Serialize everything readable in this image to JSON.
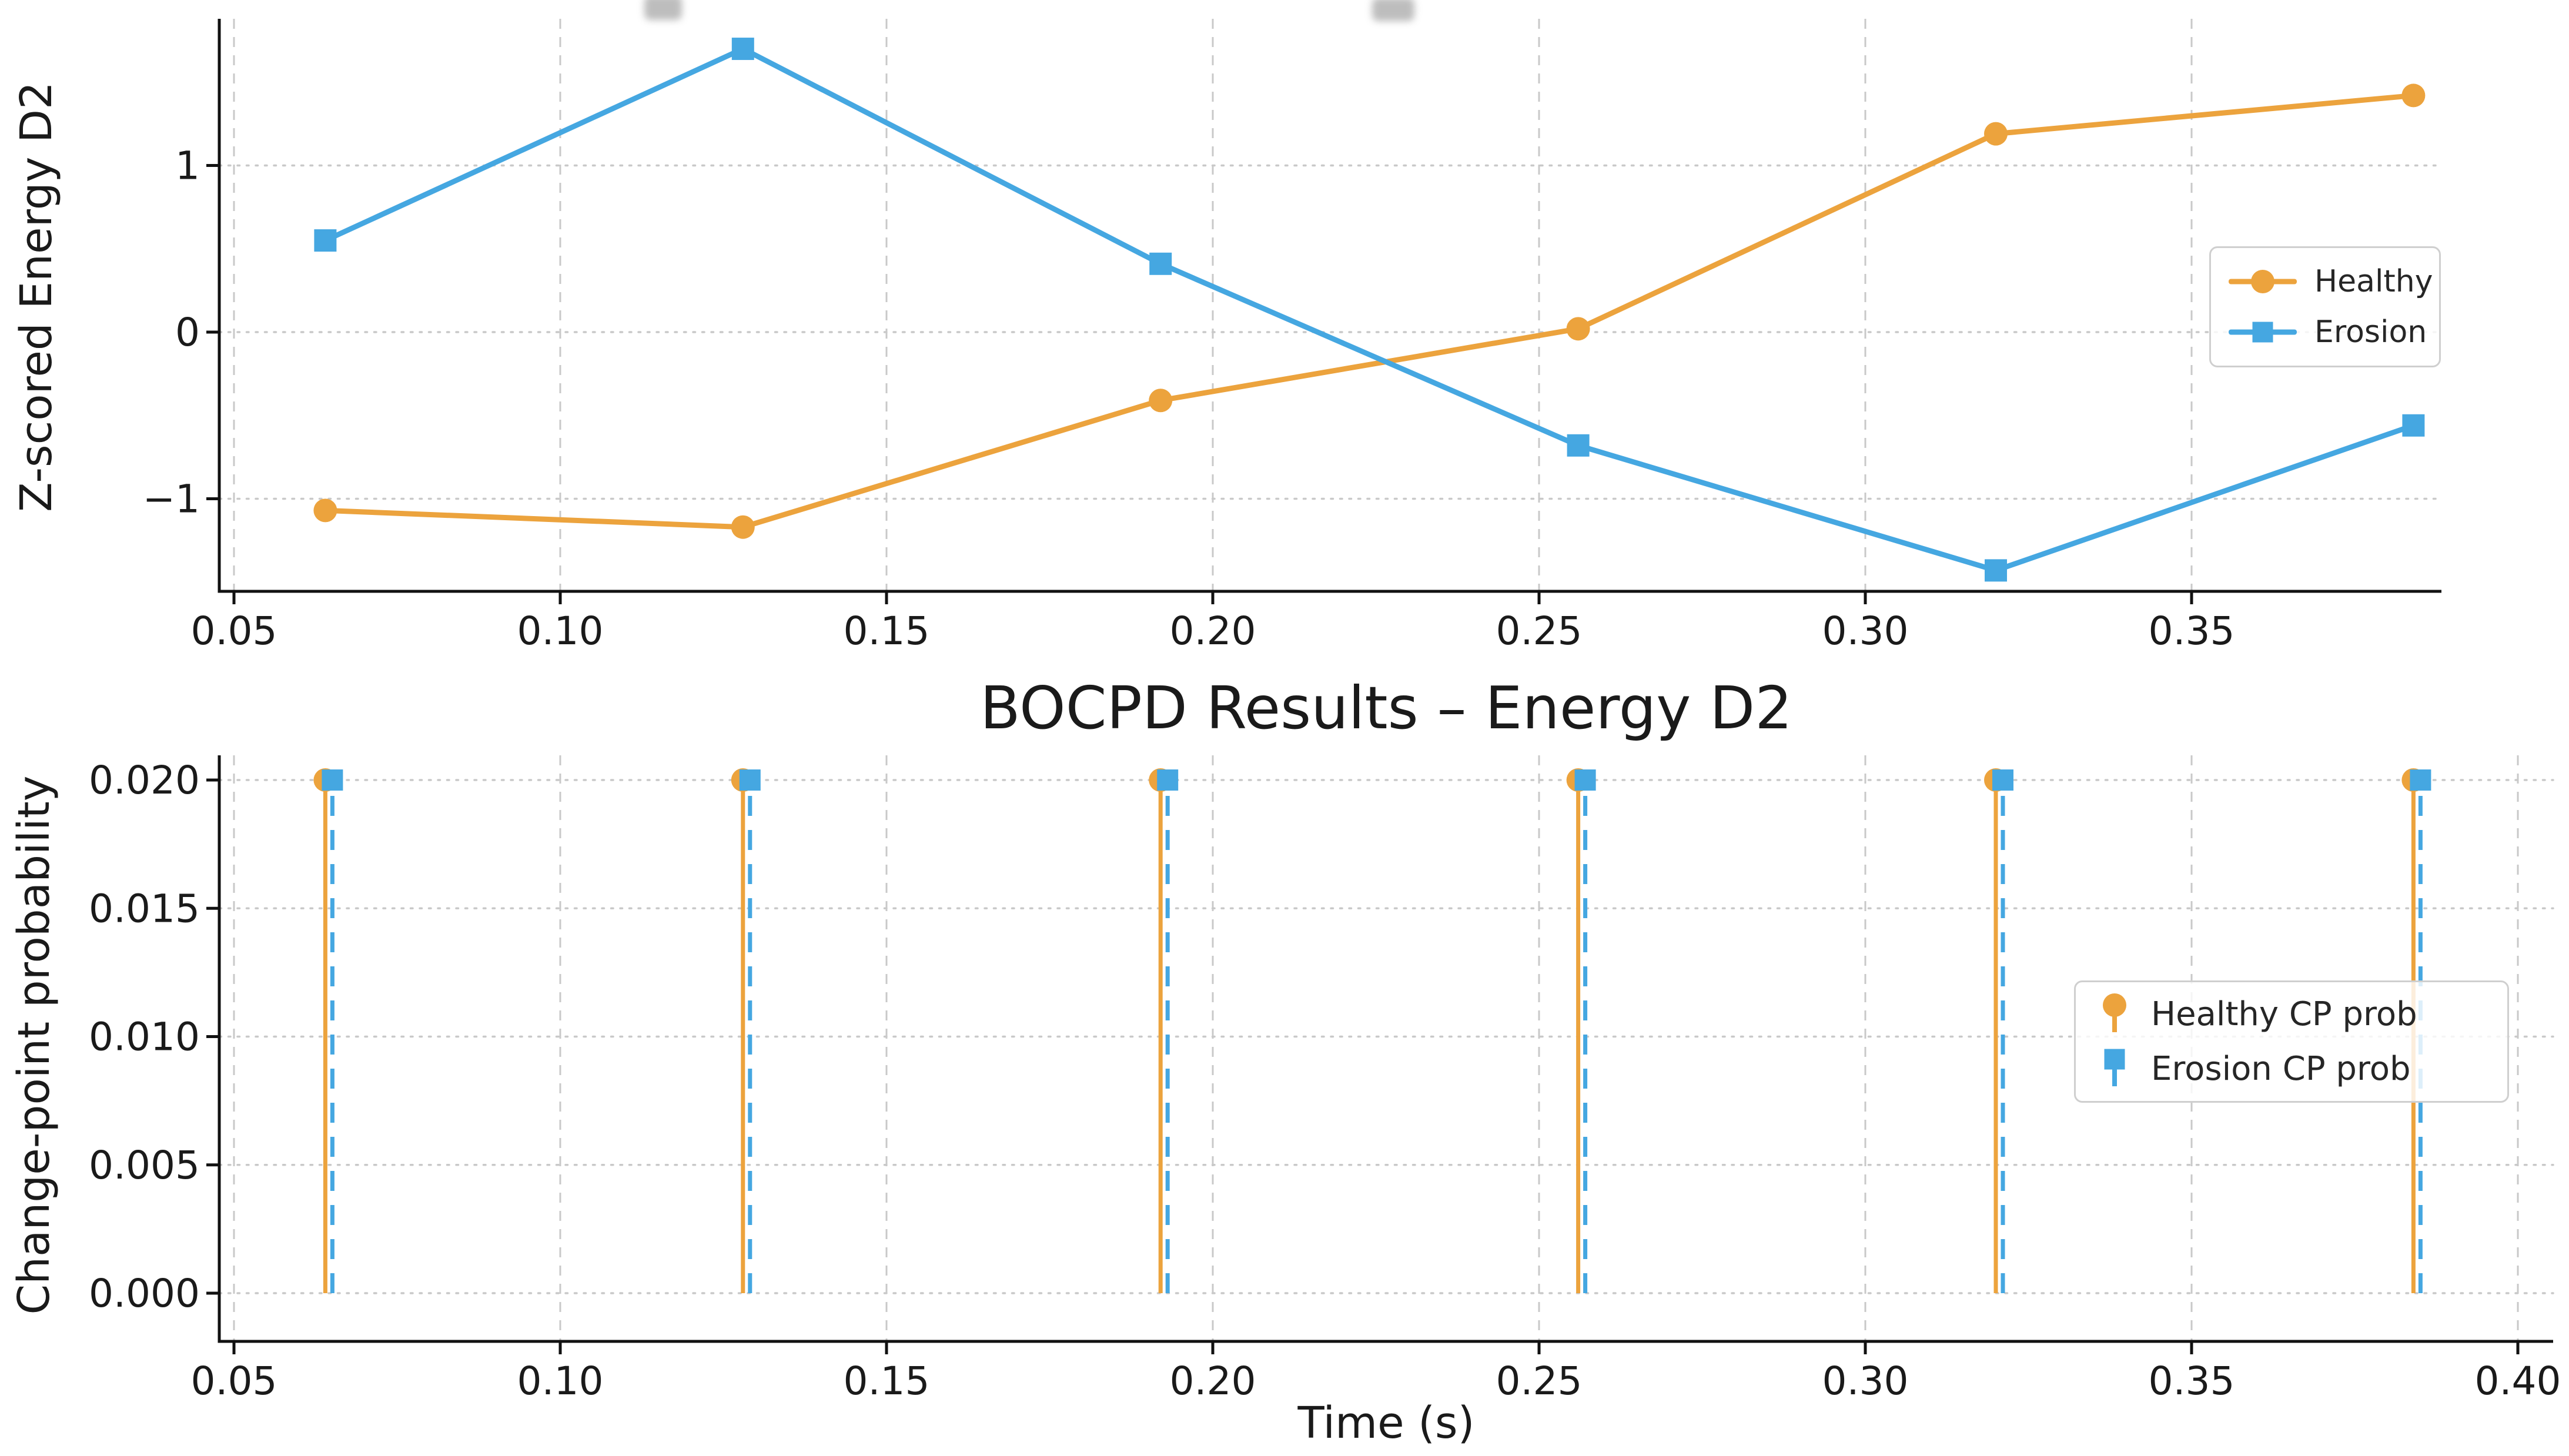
{
  "figure": {
    "background": "#ffffff",
    "kind": "matplotlib-style stacked subplots screenshot"
  },
  "colors": {
    "healthy": "#ECA33D",
    "erosion": "#45A7E1",
    "grid": "#c9c9c9",
    "axis": "#111111",
    "text": "#1a1a1a",
    "legend_border": "#cfcfcf"
  },
  "chart_data": [
    {
      "type": "line",
      "title": "",
      "xlabel": "",
      "ylabel": "Z-scored Energy D2",
      "x": [
        0.064,
        0.128,
        0.192,
        0.256,
        0.32,
        0.384
      ],
      "series": [
        {
          "name": "Healthy",
          "marker": "circle",
          "color": "healthy",
          "line_style": "solid",
          "values": [
            -1.07,
            -1.17,
            -0.41,
            0.02,
            1.19,
            1.42
          ]
        },
        {
          "name": "Erosion",
          "marker": "square",
          "color": "erosion",
          "line_style": "solid",
          "values": [
            0.55,
            1.7,
            0.41,
            -0.68,
            -1.43,
            -0.56
          ]
        }
      ],
      "xlim": [
        0.0477,
        0.3885
      ],
      "ylim": [
        -1.56,
        1.88
      ],
      "xticks": {
        "values": [
          0.05,
          0.1,
          0.15,
          0.2,
          0.25,
          0.3,
          0.35
        ],
        "labels": [
          "0.05",
          "0.10",
          "0.15",
          "0.20",
          "0.25",
          "0.30",
          "0.35"
        ]
      },
      "yticks": {
        "values": [
          -1,
          0,
          1
        ],
        "labels": [
          "−1",
          "0",
          "1"
        ]
      },
      "grid": true,
      "legend": {
        "position": "right-center",
        "entries": [
          {
            "label": "Healthy"
          },
          {
            "label": "Erosion"
          }
        ]
      }
    },
    {
      "type": "stem",
      "title": "BOCPD Results – Energy D2",
      "xlabel": "Time (s)",
      "ylabel": "Change-point probability",
      "x": [
        0.064,
        0.128,
        0.192,
        0.256,
        0.32,
        0.384
      ],
      "series": [
        {
          "name": "Healthy CP prob",
          "marker": "circle",
          "color": "healthy",
          "line_style": "solid",
          "values": [
            0.02,
            0.02,
            0.02,
            0.02,
            0.02,
            0.02
          ]
        },
        {
          "name": "Erosion CP prob",
          "marker": "square",
          "color": "erosion",
          "line_style": "dashed",
          "values": [
            0.02,
            0.02,
            0.02,
            0.02,
            0.02,
            0.02
          ]
        }
      ],
      "xlim": [
        0.0477,
        0.405
      ],
      "ylim": [
        -0.0019,
        0.021
      ],
      "xticks": {
        "values": [
          0.05,
          0.1,
          0.15,
          0.2,
          0.25,
          0.3,
          0.35,
          0.4
        ],
        "labels": [
          "0.05",
          "0.10",
          "0.15",
          "0.20",
          "0.25",
          "0.30",
          "0.35",
          "0.40"
        ]
      },
      "yticks": {
        "values": [
          0.0,
          0.005,
          0.01,
          0.015,
          0.02
        ],
        "labels": [
          "0.000",
          "0.005",
          "0.010",
          "0.015",
          "0.020"
        ]
      },
      "grid": true,
      "legend": {
        "position": "right-center",
        "entries": [
          {
            "label": "Healthy CP prob"
          },
          {
            "label": "Erosion CP prob"
          }
        ]
      }
    }
  ]
}
